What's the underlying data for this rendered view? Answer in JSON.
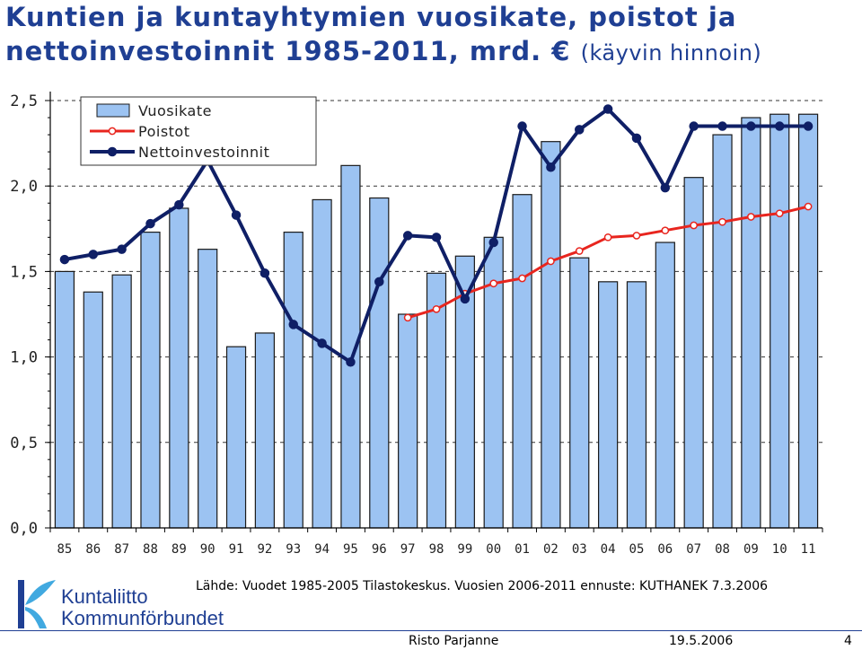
{
  "slide": {
    "title_main": "Kuntien ja kuntayhtymien vuosikate, poistot ja nettoinvestoinnit 1985-2011, mrd.",
    "title_euro": "€",
    "title_note": "(käyvin hinnoin)",
    "source": "Lähde: Vuodet 1985-2005 Tilastokeskus. Vuosien 2006-2011 ennuste: KUTHANEK 7.3.2006",
    "logo_line1": "Kuntaliitto",
    "logo_line2": "Kommunförbundet",
    "author": "Risto Parjanne",
    "date": "19.5.2006",
    "page": "4"
  },
  "colors": {
    "title": "#1f3f93",
    "bar_fill": "#9cc3f2",
    "bar_stroke": "#1a1a1a",
    "poistot": "#e8251e",
    "netto": "#0f1f66",
    "logo_blue": "#1f3f93",
    "logo_light": "#41a9e0"
  },
  "chart_data": {
    "type": "bar",
    "categories": [
      "85",
      "86",
      "87",
      "88",
      "89",
      "90",
      "91",
      "92",
      "93",
      "94",
      "95",
      "96",
      "97",
      "98",
      "99",
      "00",
      "01",
      "02",
      "03",
      "04",
      "05",
      "06",
      "07",
      "08",
      "09",
      "10",
      "11"
    ],
    "ylim": [
      0,
      2.5
    ],
    "yticks": [
      "0,0",
      "0,5",
      "1,0",
      "1,5",
      "2,0",
      "2,5"
    ],
    "legend_position": "top-left",
    "series": [
      {
        "name": "Vuosikate",
        "kind": "bar",
        "values": [
          1.5,
          1.38,
          1.48,
          1.73,
          1.87,
          1.63,
          1.06,
          1.14,
          1.73,
          1.92,
          2.12,
          1.93,
          1.25,
          1.49,
          1.59,
          1.7,
          1.95,
          2.26,
          1.58,
          1.44,
          1.44,
          1.67,
          2.05,
          2.3,
          2.4,
          2.42,
          2.42
        ]
      },
      {
        "name": "Poistot",
        "kind": "line",
        "values": [
          null,
          null,
          null,
          null,
          null,
          null,
          null,
          null,
          null,
          null,
          null,
          null,
          1.23,
          1.28,
          1.37,
          1.43,
          1.46,
          1.56,
          1.62,
          1.7,
          1.71,
          1.74,
          1.77,
          1.79,
          1.82,
          1.84,
          1.88
        ]
      },
      {
        "name": "Nettoinvestoinnit",
        "kind": "line",
        "values": [
          1.57,
          1.6,
          1.63,
          1.78,
          1.89,
          2.15,
          1.83,
          1.49,
          1.19,
          1.08,
          0.97,
          1.44,
          1.71,
          1.7,
          1.34,
          1.67,
          2.35,
          2.11,
          2.33,
          2.45,
          2.28,
          1.99,
          2.35,
          2.35,
          2.35,
          2.35,
          2.35
        ]
      }
    ]
  }
}
